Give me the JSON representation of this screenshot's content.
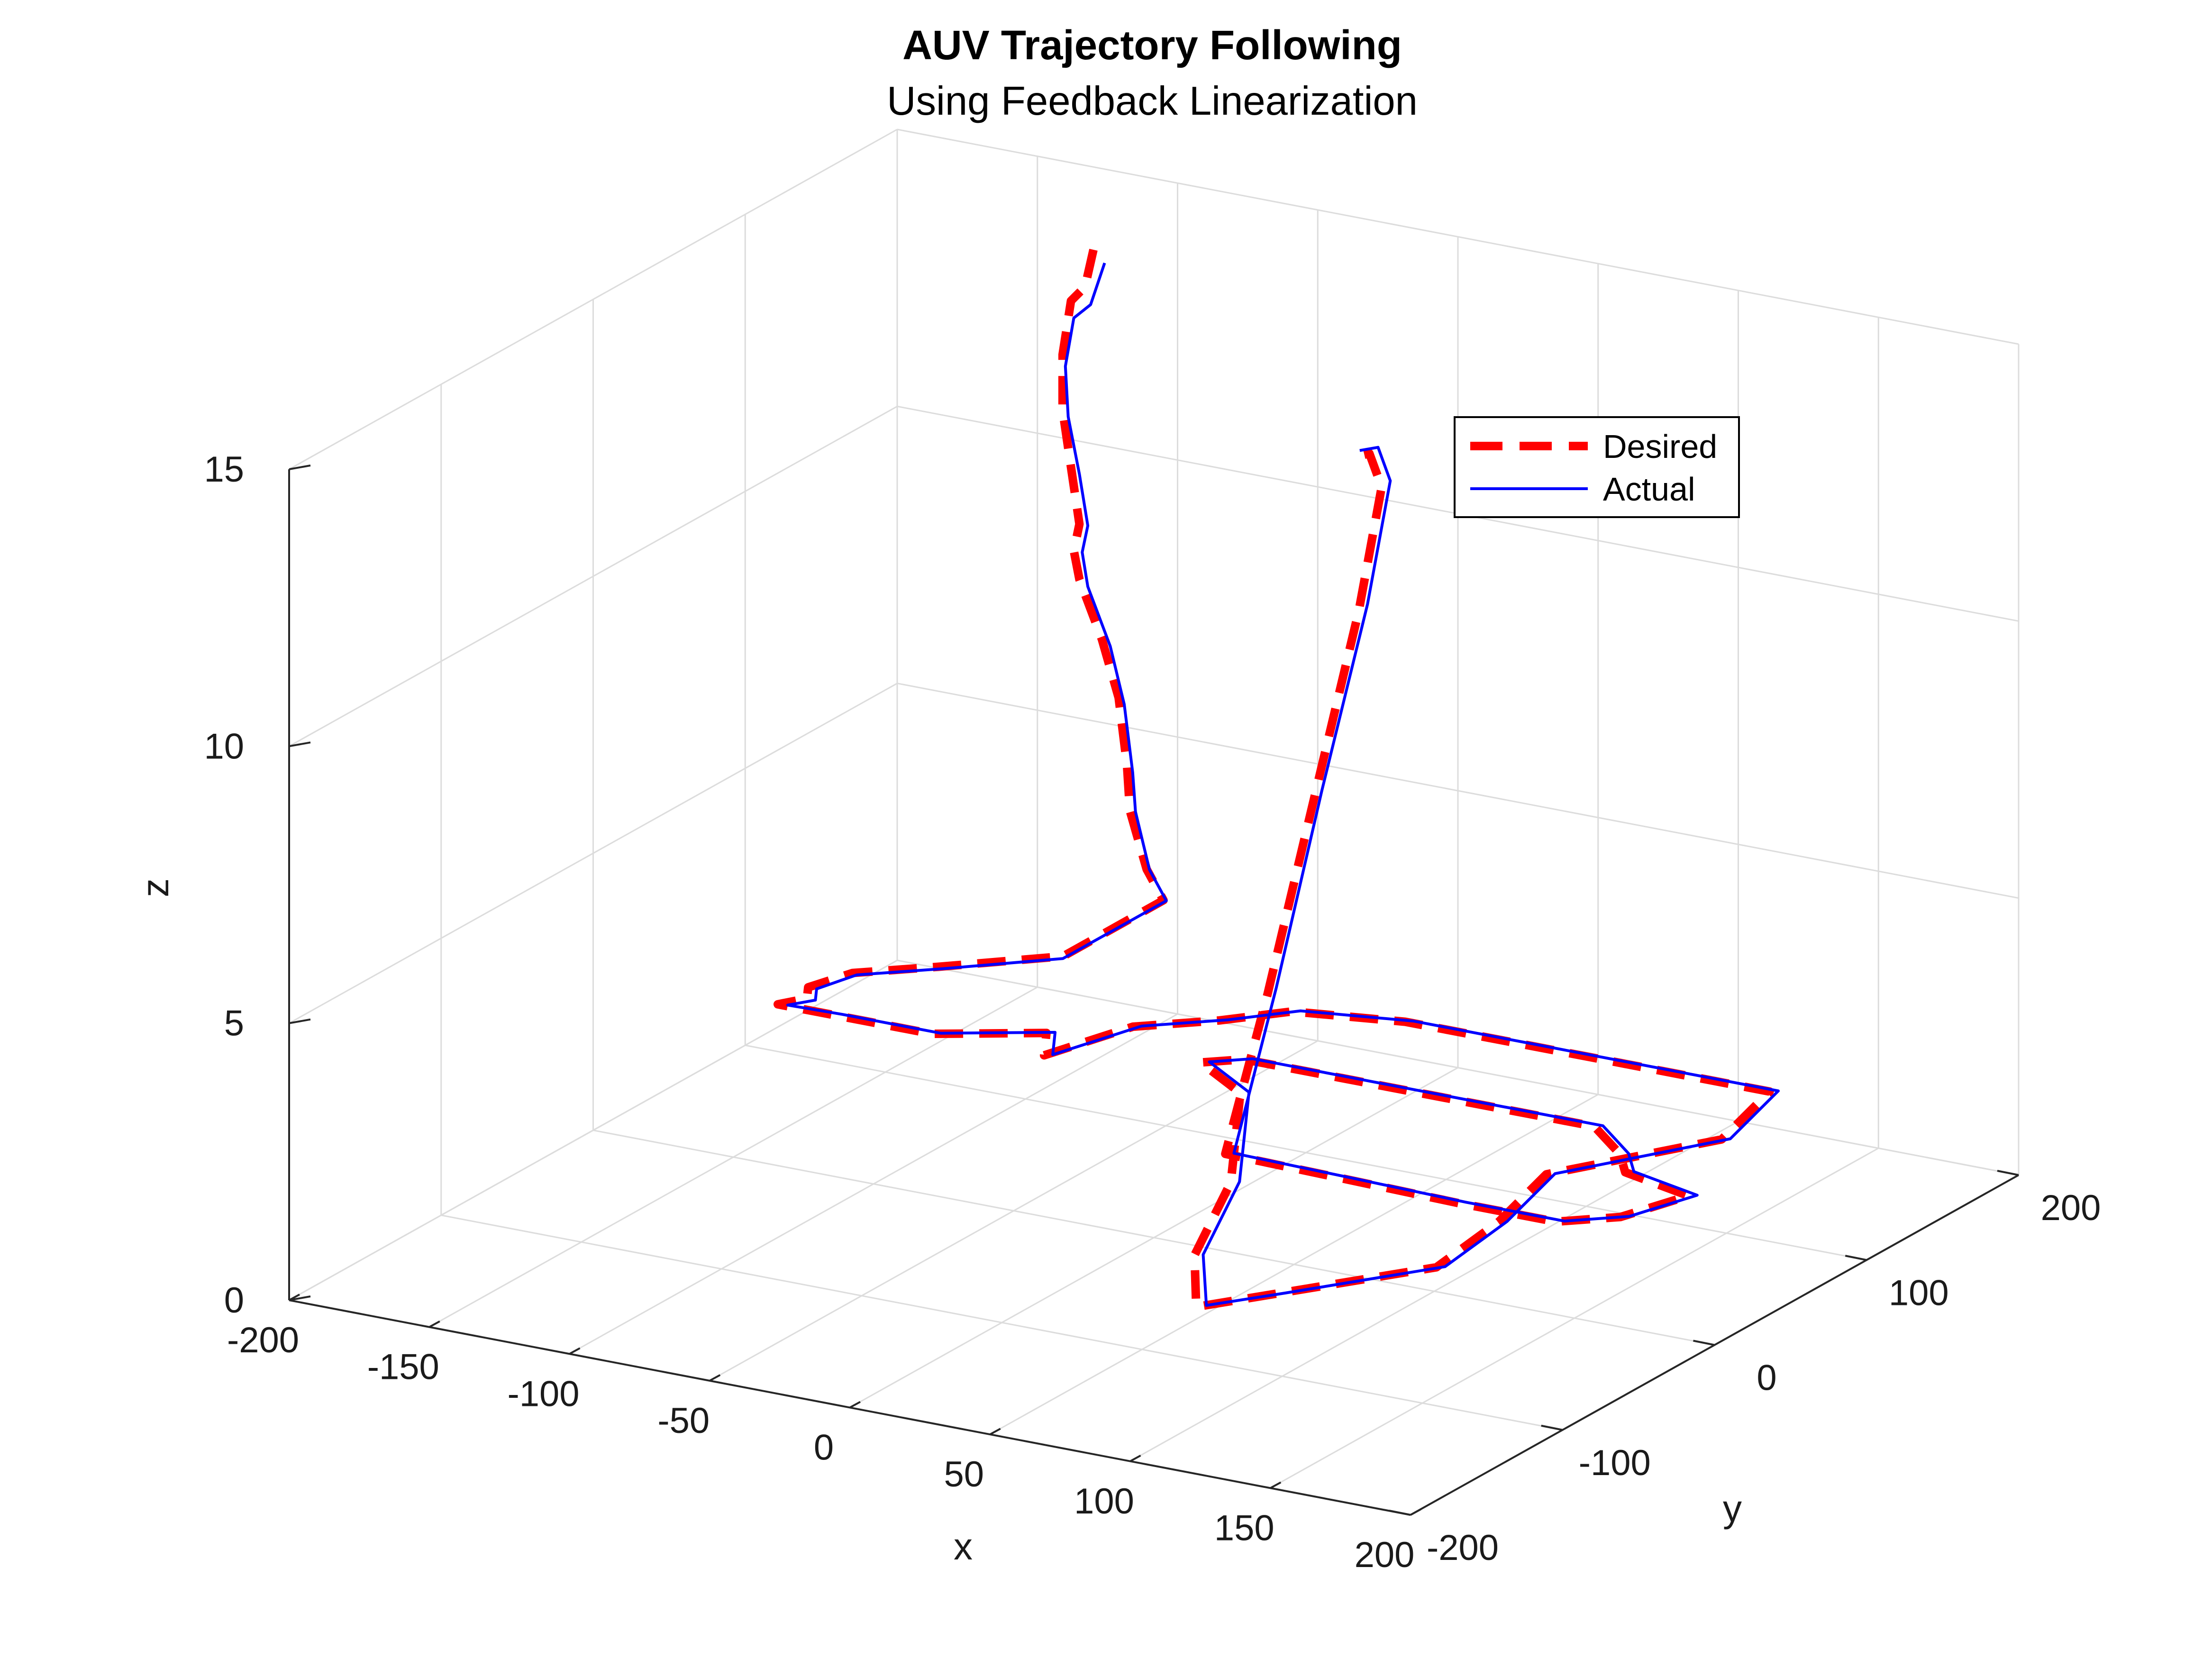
{
  "chart_data": {
    "type": "line",
    "title": "AUV Trajectory Following",
    "subtitle": "Using Feedback Linearization",
    "xlabel": "x",
    "ylabel": "y",
    "zlabel": "z",
    "xlim": [
      -200,
      200
    ],
    "ylim": [
      -200,
      200
    ],
    "zlim": [
      0,
      15
    ],
    "xticks": [
      "-200",
      "-150",
      "-100",
      "-50",
      "0",
      "50",
      "100",
      "150",
      "200"
    ],
    "yticks": [
      "-200",
      "-100",
      "0",
      "100",
      "200"
    ],
    "zticks": [
      "0",
      "5",
      "10",
      "15"
    ],
    "grid": true,
    "legend_position": "top-right",
    "series": [
      {
        "name": "Desired",
        "style": "dashed",
        "color": "#ff0000",
        "points": [
          [
            -117,
            176,
            14
          ],
          [
            -120,
            176,
            13.3
          ],
          [
            -125,
            176,
            13
          ],
          [
            -128,
            176,
            12
          ],
          [
            -128,
            176,
            11
          ],
          [
            -125,
            176,
            10
          ],
          [
            -122,
            176,
            9
          ],
          [
            -124,
            176,
            8.5
          ],
          [
            -122,
            176,
            8
          ],
          [
            -114,
            176,
            7
          ],
          [
            -108,
            176,
            6
          ],
          [
            -105,
            176,
            4.8
          ],
          [
            -104,
            176,
            4
          ],
          [
            -98,
            176,
            3
          ],
          [
            -92,
            176,
            2.5
          ],
          [
            -92,
            110,
            2.5
          ],
          [
            -120,
            80,
            2.5
          ],
          [
            -140,
            60,
            2.5
          ],
          [
            -145,
            40,
            2.5
          ],
          [
            -140,
            30,
            2.5
          ],
          [
            -145,
            20,
            2.5
          ],
          [
            -125,
            20,
            2.5
          ],
          [
            -105,
            20,
            2.5
          ],
          [
            -90,
            20,
            2.5
          ],
          [
            -60,
            40,
            2.5
          ],
          [
            -50,
            20,
            2.5
          ],
          [
            -40,
            60,
            2.5
          ],
          [
            -20,
            80,
            2.5
          ],
          [
            -5,
            100,
            2.5
          ],
          [
            30,
            110,
            2.5
          ],
          [
            60,
            110,
            2.5
          ],
          [
            95,
            110,
            2.5
          ],
          [
            130,
            110,
            2.5
          ],
          [
            160,
            110,
            2.5
          ],
          [
            170,
            60,
            2.5
          ],
          [
            140,
            0,
            2.5
          ],
          [
            150,
            -50,
            2.5
          ],
          [
            155,
            -100,
            2.5
          ],
          [
            125,
            -150,
            2.5
          ],
          [
            110,
            -175,
            2.5
          ],
          [
            85,
            -130,
            2.5
          ],
          [
            60,
            -60,
            2.5
          ],
          [
            20,
            20,
            2.5
          ],
          [
            -5,
            40,
            2.5
          ],
          [
            5,
            50,
            2.5
          ],
          [
            40,
            50,
            2.5
          ],
          [
            70,
            50,
            2.5
          ],
          [
            100,
            50,
            2.5
          ],
          [
            130,
            50,
            2.5
          ],
          [
            150,
            30,
            2.5
          ],
          [
            160,
            15,
            2.5
          ],
          [
            188,
            5,
            2.5
          ],
          [
            180,
            -25,
            2.5
          ],
          [
            165,
            -40,
            2.5
          ],
          [
            130,
            -40,
            2.5
          ],
          [
            90,
            -38,
            2.5
          ],
          [
            45,
            -36,
            2.5
          ],
          [
            46,
            -10,
            5
          ],
          [
            46,
            20,
            8
          ],
          [
            46,
            50,
            11
          ],
          [
            46,
            65,
            13
          ],
          [
            40,
            68,
            13.5
          ],
          [
            35,
            67,
            13.4
          ]
        ]
      },
      {
        "name": "Actual",
        "style": "solid",
        "color": "#0000ff",
        "points": [
          [
            -113,
            176,
            13.8
          ],
          [
            -118,
            176,
            13.0
          ],
          [
            -124,
            176,
            12.7
          ],
          [
            -127,
            176,
            11.8
          ],
          [
            -126,
            176,
            10.9
          ],
          [
            -122,
            176,
            9.9
          ],
          [
            -119,
            176,
            9
          ],
          [
            -121,
            176,
            8.5
          ],
          [
            -119,
            176,
            7.9
          ],
          [
            -111,
            176,
            6.9
          ],
          [
            -106,
            176,
            5.9
          ],
          [
            -103,
            176,
            4.7
          ],
          [
            -102,
            176,
            4
          ],
          [
            -97,
            176,
            3
          ],
          [
            -91,
            176,
            2.5
          ],
          [
            -91,
            108,
            2.5
          ],
          [
            -118,
            79,
            2.5
          ],
          [
            -138,
            59,
            2.5
          ],
          [
            -142,
            40,
            2.5
          ],
          [
            -137,
            30,
            2.5
          ],
          [
            -142,
            21,
            2.5
          ],
          [
            -123,
            22,
            2.5
          ],
          [
            -103,
            22,
            2.5
          ],
          [
            -88,
            22,
            2.5
          ],
          [
            -58,
            42,
            2.5
          ],
          [
            -48,
            22,
            2.5
          ],
          [
            -38,
            62,
            2.5
          ],
          [
            -18,
            82,
            2.5
          ],
          [
            -3,
            102,
            2.5
          ],
          [
            32,
            112,
            2.5
          ],
          [
            62,
            112,
            2.5
          ],
          [
            97,
            112,
            2.5
          ],
          [
            132,
            112,
            2.5
          ],
          [
            162,
            112,
            2.5
          ],
          [
            172,
            62,
            2.5
          ],
          [
            142,
            2,
            2.5
          ],
          [
            152,
            -48,
            2.5
          ],
          [
            157,
            -98,
            2.5
          ],
          [
            127,
            -148,
            2.5
          ],
          [
            112,
            -172,
            2.5
          ],
          [
            87,
            -128,
            2.5
          ],
          [
            62,
            -58,
            2.5
          ],
          [
            22,
            22,
            2.5
          ],
          [
            -3,
            42,
            2.5
          ],
          [
            7,
            52,
            2.5
          ],
          [
            42,
            52,
            2.5
          ],
          [
            72,
            52,
            2.5
          ],
          [
            102,
            52,
            2.5
          ],
          [
            132,
            52,
            2.5
          ],
          [
            152,
            32,
            2.5
          ],
          [
            162,
            17,
            2.5
          ],
          [
            190,
            7,
            2.5
          ],
          [
            182,
            -23,
            2.5
          ],
          [
            167,
            -38,
            2.5
          ],
          [
            132,
            -38,
            2.5
          ],
          [
            92,
            -36,
            2.5
          ],
          [
            47,
            -34,
            2.5
          ],
          [
            48,
            -8,
            5.1
          ],
          [
            48,
            22,
            8.2
          ],
          [
            48,
            52,
            11.1
          ],
          [
            48,
            67,
            13.1
          ],
          [
            42,
            70,
            13.6
          ],
          [
            36,
            69,
            13.5
          ]
        ]
      }
    ]
  }
}
